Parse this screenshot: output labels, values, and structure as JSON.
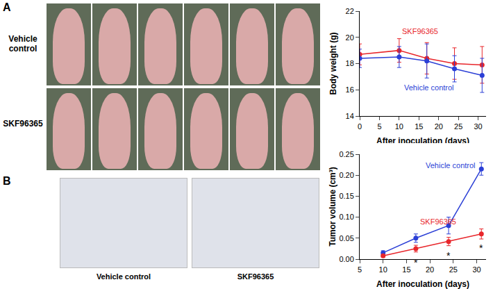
{
  "panels": [
    {
      "label": "A",
      "rows": [
        "Vehicle control",
        "SKF96365"
      ]
    },
    {
      "label": "B",
      "captions": [
        "Vehicle control",
        "SKF96365"
      ]
    }
  ],
  "chart_data": [
    {
      "type": "line",
      "x_label": "After inoculation (days)",
      "y_label": "Body weight (g)",
      "xlim": [
        0,
        32
      ],
      "xticks": [
        0,
        5,
        10,
        15,
        20,
        25,
        30
      ],
      "ylim": [
        14,
        22
      ],
      "yticks": [
        14,
        16,
        18,
        20,
        22
      ],
      "grid": false,
      "marker": "circle",
      "line_style": "solid",
      "series": [
        {
          "name": "SKF96365",
          "color": "#e8262b",
          "x": [
            0,
            10,
            17,
            24,
            31
          ],
          "values": [
            18.7,
            19.0,
            18.4,
            18.0,
            17.9
          ],
          "errors": [
            0.8,
            0.9,
            1.2,
            1.2,
            1.4
          ]
        },
        {
          "name": "Vehicle control",
          "color": "#2b3fd6",
          "x": [
            0,
            10,
            17,
            24,
            31
          ],
          "values": [
            18.4,
            18.5,
            18.2,
            17.6,
            17.1
          ],
          "errors": [
            0.7,
            0.8,
            1.3,
            1.0,
            1.3
          ]
        }
      ]
    },
    {
      "type": "line",
      "x_label": "After inoculation (days)",
      "y_label": "Tumor volume (cm³)",
      "xlim": [
        5,
        32
      ],
      "xticks": [
        5,
        10,
        15,
        20,
        25,
        30
      ],
      "ylim": [
        0,
        0.25
      ],
      "yticks": [
        {
          "value": 0,
          "label": "0.00"
        },
        {
          "value": 0.05,
          "label": "0.05"
        },
        {
          "value": 0.1,
          "label": "0.10"
        },
        {
          "value": 0.15,
          "label": "0.15"
        },
        {
          "value": 0.2,
          "label": "0.20"
        },
        {
          "value": 0.25,
          "label": "0.25"
        }
      ],
      "grid": false,
      "marker": "circle",
      "line_style": "solid",
      "series": [
        {
          "name": "Vehicle control",
          "color": "#2b3fd6",
          "x": [
            10,
            17,
            24,
            31
          ],
          "values": [
            0.015,
            0.05,
            0.08,
            0.215
          ],
          "errors": [
            0.005,
            0.01,
            0.02,
            0.015
          ]
        },
        {
          "name": "SKF96365",
          "color": "#e8262b",
          "x": [
            10,
            17,
            24,
            31
          ],
          "values": [
            0.008,
            0.025,
            0.042,
            0.06
          ],
          "errors": [
            0.003,
            0.008,
            0.01,
            0.012
          ]
        }
      ],
      "annotations": [
        {
          "x": 17,
          "text": "*"
        },
        {
          "x": 24,
          "text": "*"
        },
        {
          "x": 31,
          "text": "*"
        }
      ]
    }
  ]
}
